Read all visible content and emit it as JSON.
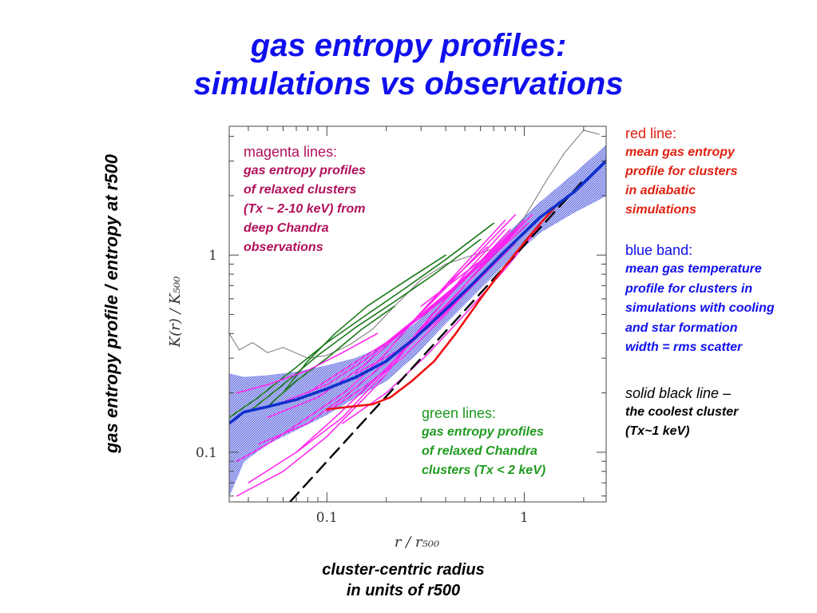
{
  "titles": {
    "line1": "gas entropy profiles:",
    "line2": "simulations vs observations"
  },
  "side_label": "gas entropy profile / entropy at r500",
  "bottom_caption": {
    "line1": "cluster-centric radius",
    "line2": "in units of r500"
  },
  "notes": {
    "magenta": {
      "head": "magenta lines:",
      "lines": [
        "gas entropy profiles",
        "of relaxed clusters",
        "(Tx ~ 2-10 keV) from",
        "deep Chandra",
        "observations"
      ]
    },
    "green": {
      "head": "green lines:",
      "lines": [
        "gas entropy profiles",
        "of relaxed Chandra",
        "clusters (Tx < 2 keV)"
      ]
    },
    "red": {
      "head": "red line:",
      "lines": [
        "mean gas entropy",
        "profile for clusters",
        "in adiabatic",
        "simulations"
      ]
    },
    "blue": {
      "head": "blue band:",
      "lines": [
        "mean gas temperature",
        "profile for clusters in",
        "simulations with cooling",
        "and star formation",
        "width = rms scatter"
      ]
    },
    "black": {
      "head": "solid black line",
      "head_suffix": " –",
      "lines": [
        "the coolest cluster",
        "(Tx~1 keV)"
      ]
    }
  },
  "colors": {
    "title": "#1010ee",
    "magenta": "#ff22ee",
    "green": "#1a7a1a",
    "red": "#ee1111",
    "blue": "#1030cc",
    "band": "#8890ee",
    "gray": "#777777"
  },
  "chart_data": {
    "type": "line",
    "xscale": "log",
    "yscale": "log",
    "xlim": [
      0.032,
      2.6
    ],
    "ylim": [
      0.056,
      4.5
    ],
    "xlabel": "r / r₅₀₀",
    "ylabel": "K(r) / K₅₀₀",
    "xticks": [
      {
        "value": 0.1,
        "label": "0.1"
      },
      {
        "value": 1,
        "label": "1"
      }
    ],
    "yticks": [
      {
        "value": 0.1,
        "label": "0.1"
      },
      {
        "value": 1,
        "label": "1"
      }
    ],
    "series": [
      {
        "role": "blue-band-mean",
        "x": [
          0.032,
          0.038,
          0.05,
          0.07,
          0.1,
          0.14,
          0.2,
          0.28,
          0.4,
          0.55,
          0.8,
          1.2,
          1.8,
          2.6
        ],
        "y": [
          0.14,
          0.16,
          0.17,
          0.185,
          0.21,
          0.24,
          0.29,
          0.38,
          0.53,
          0.72,
          1.05,
          1.55,
          2.1,
          3.0
        ],
        "band_low": [
          0.06,
          0.09,
          0.11,
          0.13,
          0.155,
          0.19,
          0.23,
          0.31,
          0.45,
          0.62,
          0.9,
          1.3,
          1.65,
          2.0
        ],
        "band_high": [
          0.25,
          0.24,
          0.245,
          0.255,
          0.275,
          0.3,
          0.35,
          0.45,
          0.62,
          0.85,
          1.25,
          1.85,
          2.6,
          3.6
        ]
      },
      {
        "role": "red-adiabatic",
        "x": [
          0.1,
          0.13,
          0.17,
          0.21,
          0.27,
          0.35,
          0.45,
          0.6,
          0.8,
          1.1,
          1.5
        ],
        "y": [
          0.165,
          0.17,
          0.175,
          0.19,
          0.23,
          0.29,
          0.4,
          0.6,
          0.88,
          1.3,
          1.85
        ]
      },
      {
        "role": "dashed-baseline",
        "x": [
          0.065,
          2.0
        ],
        "y": [
          0.056,
          2.4
        ]
      },
      {
        "role": "gray-coolest",
        "x": [
          0.032,
          0.036,
          0.042,
          0.05,
          0.06,
          0.08,
          0.1,
          0.13,
          0.17,
          0.22,
          0.3,
          0.4,
          0.55,
          0.75,
          1.0,
          1.3,
          1.6,
          2.0,
          2.4
        ],
        "y": [
          0.4,
          0.33,
          0.36,
          0.32,
          0.34,
          0.3,
          0.31,
          0.35,
          0.42,
          0.55,
          0.75,
          0.9,
          1.0,
          1.1,
          1.55,
          2.4,
          3.3,
          4.3,
          4.1
        ]
      },
      {
        "role": "green",
        "x": [
          0.032,
          0.045,
          0.07,
          0.1,
          0.16,
          0.25,
          0.4,
          0.7
        ],
        "y": [
          0.15,
          0.19,
          0.27,
          0.36,
          0.5,
          0.68,
          0.95,
          1.45
        ]
      },
      {
        "role": "green",
        "x": [
          0.04,
          0.06,
          0.09,
          0.14,
          0.22,
          0.35,
          0.6
        ],
        "y": [
          0.16,
          0.22,
          0.31,
          0.43,
          0.58,
          0.8,
          1.2
        ]
      },
      {
        "role": "green",
        "x": [
          0.06,
          0.08,
          0.11,
          0.16,
          0.24,
          0.4
        ],
        "y": [
          0.2,
          0.29,
          0.4,
          0.55,
          0.72,
          1.0
        ]
      },
      {
        "role": "green",
        "x": [
          0.05,
          0.07,
          0.1,
          0.15,
          0.22
        ],
        "y": [
          0.17,
          0.23,
          0.3,
          0.42,
          0.55
        ]
      },
      {
        "role": "magenta",
        "x": [
          0.035,
          0.06,
          0.1,
          0.18,
          0.3,
          0.5,
          0.8
        ],
        "y": [
          0.06,
          0.08,
          0.12,
          0.22,
          0.42,
          0.8,
          1.35
        ]
      },
      {
        "role": "magenta",
        "x": [
          0.035,
          0.05,
          0.08,
          0.13,
          0.2,
          0.32,
          0.5,
          0.8
        ],
        "y": [
          0.09,
          0.11,
          0.15,
          0.21,
          0.32,
          0.55,
          0.9,
          1.5
        ]
      },
      {
        "role": "magenta",
        "x": [
          0.04,
          0.07,
          0.12,
          0.2,
          0.33,
          0.55,
          0.85
        ],
        "y": [
          0.07,
          0.1,
          0.15,
          0.26,
          0.48,
          0.85,
          1.35
        ]
      },
      {
        "role": "magenta",
        "x": [
          0.045,
          0.08,
          0.13,
          0.22,
          0.36,
          0.6,
          1.0
        ],
        "y": [
          0.11,
          0.14,
          0.2,
          0.31,
          0.5,
          0.85,
          1.45
        ]
      },
      {
        "role": "magenta",
        "x": [
          0.05,
          0.09,
          0.15,
          0.25,
          0.4,
          0.65
        ],
        "y": [
          0.15,
          0.19,
          0.27,
          0.42,
          0.7,
          1.1
        ]
      },
      {
        "role": "magenta",
        "x": [
          0.06,
          0.1,
          0.16,
          0.26,
          0.4,
          0.6,
          0.9
        ],
        "y": [
          0.18,
          0.22,
          0.3,
          0.44,
          0.68,
          1.05,
          1.6
        ]
      },
      {
        "role": "magenta",
        "x": [
          0.07,
          0.11,
          0.18,
          0.3,
          0.5,
          0.8
        ],
        "y": [
          0.1,
          0.15,
          0.24,
          0.4,
          0.7,
          1.2
        ]
      },
      {
        "role": "magenta",
        "x": [
          0.08,
          0.12,
          0.2,
          0.33,
          0.5,
          0.75,
          1.1
        ],
        "y": [
          0.2,
          0.26,
          0.36,
          0.52,
          0.75,
          1.1,
          1.6
        ]
      },
      {
        "role": "magenta",
        "x": [
          0.1,
          0.15,
          0.24,
          0.4,
          0.65
        ],
        "y": [
          0.16,
          0.21,
          0.3,
          0.5,
          0.85
        ]
      },
      {
        "role": "magenta",
        "x": [
          0.12,
          0.2,
          0.32,
          0.5,
          0.8,
          1.2
        ],
        "y": [
          0.14,
          0.2,
          0.31,
          0.5,
          0.85,
          1.4
        ]
      },
      {
        "role": "magenta",
        "x": [
          0.14,
          0.22,
          0.35,
          0.55,
          0.9
        ],
        "y": [
          0.25,
          0.32,
          0.45,
          0.7,
          1.15
        ]
      },
      {
        "role": "magenta",
        "x": [
          0.16,
          0.25,
          0.4,
          0.6,
          1.0
        ],
        "y": [
          0.3,
          0.42,
          0.62,
          0.9,
          1.5
        ]
      },
      {
        "role": "magenta",
        "x": [
          0.2,
          0.3,
          0.45,
          0.7,
          1.05
        ],
        "y": [
          0.36,
          0.5,
          0.7,
          1.0,
          1.45
        ]
      },
      {
        "role": "magenta",
        "x": [
          0.25,
          0.38,
          0.55,
          0.85
        ],
        "y": [
          0.42,
          0.6,
          0.85,
          1.3
        ]
      },
      {
        "role": "magenta",
        "x": [
          0.035,
          0.05,
          0.08,
          0.12,
          0.18
        ],
        "y": [
          0.2,
          0.22,
          0.26,
          0.32,
          0.4
        ]
      },
      {
        "role": "magenta",
        "x": [
          0.3,
          0.45,
          0.7,
          1.0
        ],
        "y": [
          0.55,
          0.75,
          1.05,
          1.45
        ]
      }
    ]
  }
}
